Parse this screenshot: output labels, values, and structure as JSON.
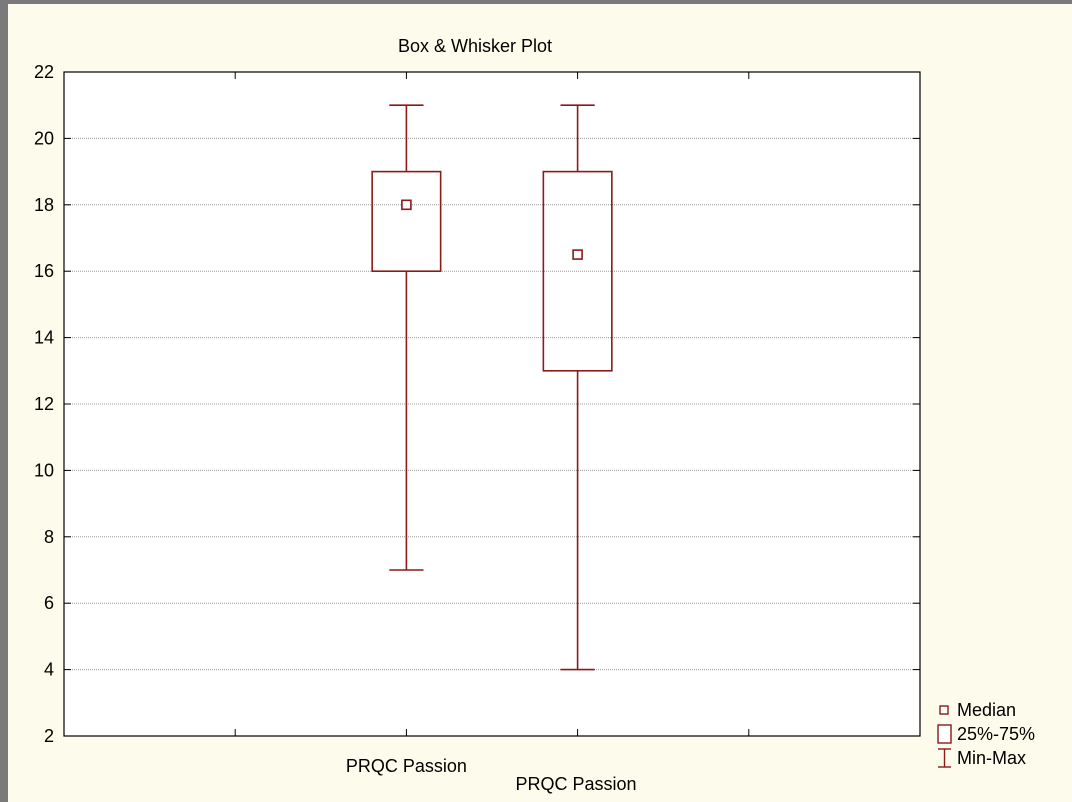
{
  "chart_data": {
    "type": "box",
    "title": "Box & Whisker Plot",
    "xlabel": "PRQC Passion",
    "ylabel": "",
    "ylim": [
      2,
      22
    ],
    "yticks": [
      2,
      4,
      6,
      8,
      10,
      12,
      14,
      16,
      18,
      20,
      22
    ],
    "categories": [
      "PRQC Passion",
      ""
    ],
    "boxes": [
      {
        "min": 7,
        "q1": 16,
        "median": 18,
        "q3": 19,
        "max": 21
      },
      {
        "min": 4,
        "q1": 13,
        "median": 16.5,
        "q3": 19,
        "max": 21
      }
    ],
    "grid": true,
    "legend": [
      "Median",
      "25%-75%",
      "Min-Max"
    ],
    "legend_position": "bottom-right",
    "colors": {
      "box": "#8b1a1a",
      "grid": "#9a9a9a",
      "plot_bg": "#ffffff",
      "outer_bg": "#fdfbec",
      "frame": "#7a7a7a"
    }
  }
}
